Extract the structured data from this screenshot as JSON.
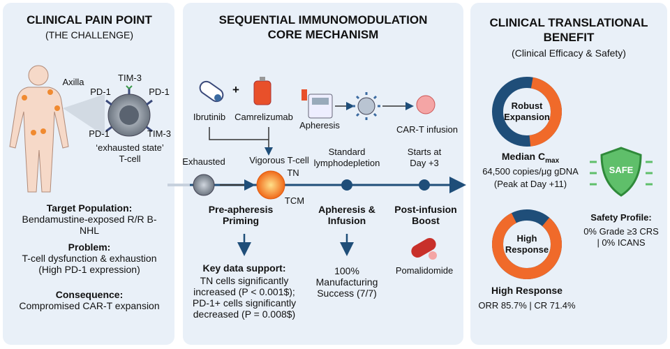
{
  "challenge": {
    "title": "CLINICAL PAIN POINT",
    "subtitle": "(THE CHALLENGE)",
    "labels": {
      "axilla": "Axilla",
      "tim3_top": "TIM-3",
      "pd1_left": "PD-1",
      "pd1_right": "PD-1",
      "pd1_bottom": "PD-1",
      "tim3_bottom": "TIM-3",
      "cell": "‘exhausted state’ T-cell"
    },
    "target": {
      "heading": "Target Population:",
      "text": "Bendamustine-exposed R/R B-NHL"
    },
    "problem": {
      "heading": "Problem:",
      "text": "T-cell dysfunction & exhaustion (High PD-1 expression)"
    },
    "consequence": {
      "heading": "Consequence:",
      "text": "Compromised CAR-T expansion"
    }
  },
  "mechanism": {
    "title": "SEQUENTIAL IMMUNOMODULATION CORE MECHANISM",
    "drugs": {
      "ibrutinib": "Ibrutinib",
      "plus": "+",
      "camrelizumab": "Camrelizumab"
    },
    "apheresis": "Apheresis",
    "car_t": "CAR-T infusion",
    "exhausted": "Exhausted",
    "vigorous": "Vigorous T-cell",
    "tn": "TN",
    "tcm": "TCM",
    "lymphodepletion": "Standard lymphodepletion",
    "day3": "Starts at Day +3",
    "stages": [
      "Pre-apheresis Priming",
      "Apheresis & Infusion",
      "Post-infusion Boost"
    ],
    "key_data": {
      "heading": "Key data support:",
      "text": "TN cells significantly increased (P < 0.001$); PD-1+ cells significantly decreased (P = 0.008$)"
    },
    "manufacturing": "100% Manufacturing Success (7/7)",
    "pomalidomide": "Pomalidomide"
  },
  "benefit": {
    "title": "CLINICAL TRANSLATIONAL BENEFIT",
    "subtitle": "(Clinical Efficacy & Safety)",
    "expansion": {
      "donut": "Robust Expansion",
      "heading": "Median C",
      "heading_sub": "max",
      "value": "64,500 copies/μg gDNA",
      "note": "(Peak at Day +11)"
    },
    "safety": {
      "badge": "SAFE",
      "heading": "Safety Profile:",
      "text": "0% Grade ≥3 CRS | 0% ICANS"
    },
    "response": {
      "donut": "High Response",
      "heading": "High Response",
      "text": "ORR 85.7% | CR 71.4%"
    }
  }
}
